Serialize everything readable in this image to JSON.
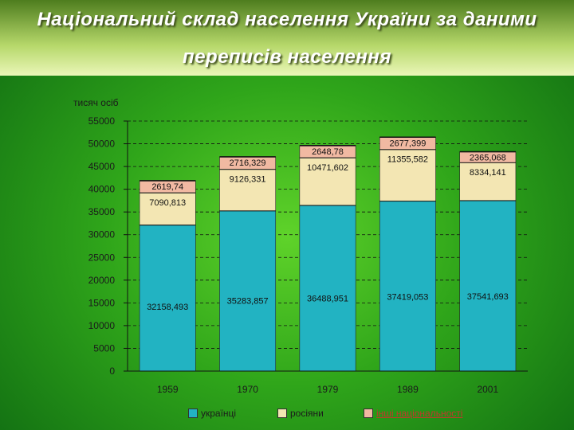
{
  "title": {
    "line1": "Національний склад населення України за даними",
    "line2": "переписів населення"
  },
  "chart_data": {
    "type": "bar",
    "stacked": true,
    "ylabel": "тисяч осіб",
    "ylim": [
      0,
      55000
    ],
    "yticks": [
      0,
      5000,
      10000,
      15000,
      20000,
      25000,
      30000,
      35000,
      40000,
      45000,
      50000,
      55000
    ],
    "grid": "dashed horizontal",
    "legend_position": "bottom",
    "categories": [
      "1959",
      "1970",
      "1979",
      "1989",
      "2001"
    ],
    "series": [
      {
        "name": "українці",
        "color": "#22b3c2",
        "values": [
          32158.493,
          35283.857,
          36488.951,
          37419.053,
          37541.693
        ],
        "labels": [
          "32158,493",
          "35283,857",
          "36488,951",
          "37419,053",
          "37541,693"
        ]
      },
      {
        "name": "росіяни",
        "color": "#f3e6b3",
        "values": [
          7090.813,
          9126.331,
          10471.602,
          11355.582,
          8334.141
        ],
        "labels": [
          "7090,813",
          "9126,331",
          "10471,602",
          "11355,582",
          "8334,141"
        ]
      },
      {
        "name": "інші національності",
        "color": "#f1b9a2",
        "values": [
          2619.74,
          2716.329,
          2648.78,
          2677.399,
          2365.068
        ],
        "labels": [
          "2619,74",
          "2716,329",
          "2648,78",
          "2677,399",
          "2365,068"
        ]
      }
    ]
  }
}
